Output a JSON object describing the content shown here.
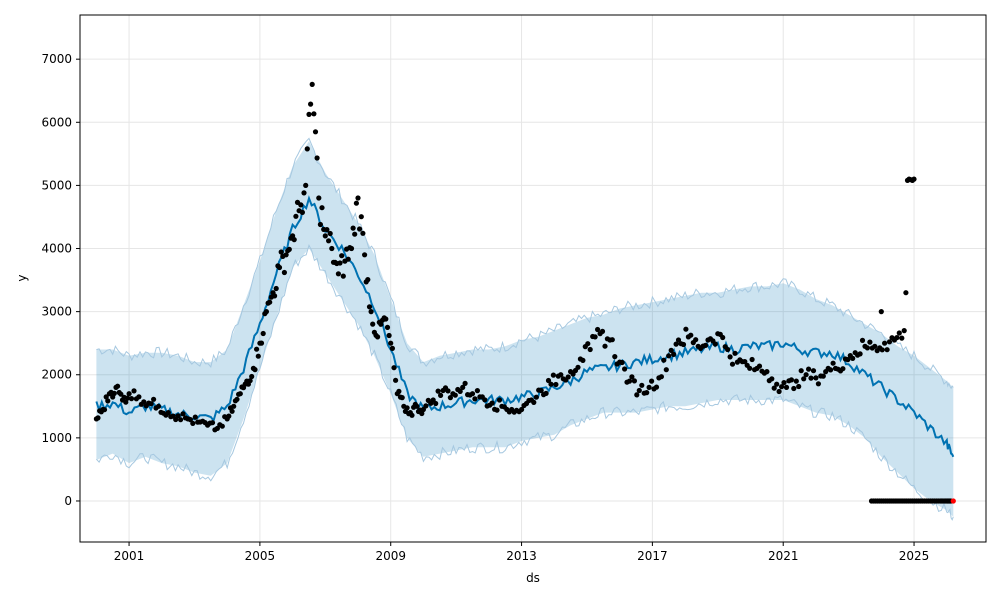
{
  "chart_data": {
    "type": "line",
    "xlabel": "ds",
    "ylabel": "y",
    "xlim": [
      1999.5,
      2027.2
    ],
    "ylim": [
      -650,
      7700
    ],
    "x_ticks": [
      2001,
      2005,
      2009,
      2013,
      2017,
      2021,
      2025
    ],
    "y_ticks": [
      0,
      1000,
      2000,
      3000,
      4000,
      5000,
      6000,
      7000
    ],
    "grid": true,
    "colors": {
      "observed": "#000000",
      "forecast": "#0072B2",
      "interval_fill": "#0072B2",
      "interval_edge": "#a6c8e0",
      "last_point": "#ff0000"
    },
    "series": [
      {
        "role": "observed",
        "x": [
          2000.0,
          2000.2,
          2000.4,
          2000.6,
          2000.8,
          2001.0,
          2001.3,
          2001.6,
          2001.9,
          2002.2,
          2002.5,
          2002.8,
          2003.1,
          2003.4,
          2003.7,
          2004.0,
          2004.2,
          2004.4,
          2004.6,
          2004.8,
          2005.0,
          2005.2,
          2005.4,
          2005.6,
          2005.8,
          2006.0,
          2006.2,
          2006.4,
          2006.6,
          2006.8,
          2007.0,
          2007.2,
          2007.4,
          2007.6,
          2007.8,
          2008.0,
          2008.2,
          2008.4,
          2008.6,
          2008.8,
          2009.0,
          2009.2,
          2009.4,
          2009.6,
          2009.8,
          2010.0,
          2010.3,
          2010.6,
          2010.9,
          2011.2,
          2011.5,
          2011.8,
          2012.1,
          2012.4,
          2012.7,
          2013.0,
          2013.3,
          2013.6,
          2013.9,
          2014.2,
          2014.5,
          2014.8,
          2015.1,
          2015.4,
          2015.7,
          2016.0,
          2016.3,
          2016.6,
          2016.9,
          2017.2,
          2017.5,
          2017.8,
          2018.1,
          2018.4,
          2018.7,
          2019.0,
          2019.3,
          2019.6,
          2019.9,
          2020.2,
          2020.5,
          2020.8,
          2021.1,
          2021.4,
          2021.7,
          2022.0,
          2022.3,
          2022.6,
          2022.9,
          2023.2,
          2023.5,
          2023.8,
          2024.1,
          2024.4,
          2024.7
        ],
        "y": [
          1300,
          1450,
          1700,
          1800,
          1600,
          1700,
          1650,
          1550,
          1500,
          1400,
          1350,
          1300,
          1250,
          1200,
          1150,
          1300,
          1500,
          1700,
          1900,
          2100,
          2500,
          3000,
          3300,
          3700,
          3900,
          4200,
          4600,
          5000,
          6600,
          4800,
          4200,
          4000,
          3600,
          3800,
          4000,
          4800,
          3900,
          3000,
          2600,
          2900,
          2500,
          1700,
          1500,
          1400,
          1500,
          1450,
          1600,
          1750,
          1700,
          1800,
          1700,
          1650,
          1550,
          1500,
          1450,
          1450,
          1600,
          1750,
          1850,
          2000,
          2050,
          2250,
          2400,
          2650,
          2550,
          2200,
          1900,
          1750,
          1800,
          1950,
          2300,
          2550,
          2600,
          2450,
          2550,
          2650,
          2400,
          2200,
          2150,
          2100,
          2050,
          1850,
          1800,
          1900,
          2000,
          1950,
          2050,
          2100,
          2250,
          2350,
          2450,
          2450,
          2500,
          2550,
          2700
        ]
      },
      {
        "role": "observed-near-zero",
        "x": [
          2023.7,
          2024.0,
          2024.3,
          2024.6,
          2024.9,
          2025.2,
          2025.5,
          2025.8,
          2026.0,
          2026.15
        ],
        "y": [
          0,
          0,
          0,
          0,
          0,
          0,
          0,
          0,
          0,
          0
        ]
      },
      {
        "role": "observed-outliers",
        "x": [
          2024.0,
          2024.75,
          2024.8,
          2024.85,
          2024.9,
          2024.95,
          2025.0
        ],
        "y": [
          3000,
          3300,
          5080,
          5100,
          5090,
          5080,
          5100
        ]
      },
      {
        "role": "forecast",
        "x": [
          2000.0,
          2000.5,
          2001.0,
          2001.5,
          2002.0,
          2002.5,
          2003.0,
          2003.5,
          2004.0,
          2004.5,
          2005.0,
          2005.5,
          2006.0,
          2006.5,
          2007.0,
          2007.5,
          2008.0,
          2008.5,
          2009.0,
          2009.5,
          2010.0,
          2010.5,
          2011.0,
          2011.5,
          2012.0,
          2012.5,
          2013.0,
          2013.5,
          2014.0,
          2014.5,
          2015.0,
          2015.5,
          2016.0,
          2016.5,
          2017.0,
          2017.5,
          2018.0,
          2018.5,
          2019.0,
          2019.5,
          2020.0,
          2020.5,
          2021.0,
          2021.5,
          2022.0,
          2022.5,
          2023.0,
          2023.5,
          2024.0,
          2024.5,
          2025.0,
          2025.5,
          2026.0,
          2026.2
        ],
        "y": [
          1500,
          1550,
          1400,
          1500,
          1450,
          1380,
          1350,
          1300,
          1500,
          2100,
          2800,
          3600,
          4300,
          4800,
          4300,
          4000,
          3600,
          3100,
          2400,
          1700,
          1450,
          1500,
          1550,
          1600,
          1600,
          1600,
          1650,
          1700,
          1800,
          1900,
          2050,
          2100,
          2150,
          2200,
          2250,
          2300,
          2350,
          2400,
          2450,
          2400,
          2450,
          2450,
          2500,
          2400,
          2350,
          2350,
          2200,
          2000,
          1800,
          1600,
          1400,
          1150,
          900,
          700
        ]
      }
    ],
    "interval": {
      "x": [
        2000.0,
        2000.5,
        2001.0,
        2001.5,
        2002.0,
        2002.5,
        2003.0,
        2003.5,
        2004.0,
        2004.5,
        2005.0,
        2005.5,
        2006.0,
        2006.5,
        2007.0,
        2007.5,
        2008.0,
        2008.5,
        2009.0,
        2009.5,
        2010.0,
        2010.5,
        2011.0,
        2011.5,
        2012.0,
        2012.5,
        2013.0,
        2013.5,
        2014.0,
        2014.5,
        2015.0,
        2015.5,
        2016.0,
        2016.5,
        2017.0,
        2017.5,
        2018.0,
        2018.5,
        2019.0,
        2019.5,
        2020.0,
        2020.5,
        2021.0,
        2021.5,
        2022.0,
        2022.5,
        2023.0,
        2023.5,
        2024.0,
        2024.5,
        2025.0,
        2025.5,
        2026.0,
        2026.2
      ],
      "lower": [
        650,
        750,
        600,
        700,
        600,
        550,
        450,
        400,
        600,
        1300,
        2100,
        2900,
        3700,
        4000,
        3600,
        3200,
        2800,
        2300,
        1700,
        1000,
        700,
        750,
        800,
        850,
        850,
        850,
        950,
        1000,
        1050,
        1200,
        1300,
        1400,
        1400,
        1400,
        1450,
        1500,
        1500,
        1550,
        1600,
        1600,
        1600,
        1600,
        1600,
        1500,
        1400,
        1350,
        1200,
        1000,
        700,
        450,
        200,
        0,
        -150,
        -250
      ],
      "upper": [
        2400,
        2400,
        2300,
        2350,
        2350,
        2300,
        2200,
        2200,
        2400,
        3100,
        3800,
        4600,
        5300,
        5700,
        5200,
        4800,
        4400,
        3900,
        3200,
        2500,
        2200,
        2300,
        2350,
        2400,
        2400,
        2450,
        2550,
        2600,
        2700,
        2800,
        2900,
        2950,
        3050,
        3100,
        3150,
        3200,
        3250,
        3300,
        3300,
        3350,
        3400,
        3400,
        3450,
        3350,
        3200,
        3100,
        2950,
        2800,
        2650,
        2450,
        2300,
        2100,
        1900,
        1800
      ]
    },
    "last_point": {
      "x": 2026.2,
      "y": 0
    }
  }
}
